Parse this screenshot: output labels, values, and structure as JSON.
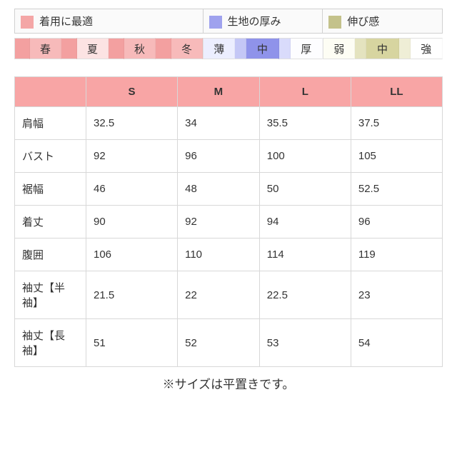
{
  "legend": {
    "items": [
      {
        "color": "#f4a6a6",
        "label": "着用に最適",
        "width_pct": 44
      },
      {
        "color": "#9fa2ee",
        "label": "生地の厚み",
        "width_pct": 28
      },
      {
        "color": "#c4c28b",
        "label": "伸び感",
        "width_pct": 28
      }
    ]
  },
  "scales": {
    "groups": [
      {
        "width_pct": 44,
        "cells": [
          {
            "label": "",
            "bg": "#f3a0a0",
            "w": 1
          },
          {
            "label": "春",
            "bg": "#f7baba",
            "w": 2
          },
          {
            "label": "",
            "bg": "#f3a0a0",
            "w": 1
          },
          {
            "label": "夏",
            "bg": "#fce3e3",
            "w": 2
          },
          {
            "label": "",
            "bg": "#f3a0a0",
            "w": 1
          },
          {
            "label": "秋",
            "bg": "#f7baba",
            "w": 2
          },
          {
            "label": "",
            "bg": "#f3a0a0",
            "w": 1
          },
          {
            "label": "冬",
            "bg": "#f7baba",
            "w": 2
          }
        ]
      },
      {
        "width_pct": 28,
        "cells": [
          {
            "label": "薄",
            "bg": "#eceeff",
            "w": 1
          },
          {
            "label": "",
            "bg": "#c4c7f6",
            "w": 0.35
          },
          {
            "label": "中",
            "bg": "#8f93ea",
            "w": 1
          },
          {
            "label": "",
            "bg": "#d9dbfb",
            "w": 0.35
          },
          {
            "label": "厚",
            "bg": "#fdfdff",
            "w": 1
          }
        ]
      },
      {
        "width_pct": 28,
        "cells": [
          {
            "label": "弱",
            "bg": "#fdfdf4",
            "w": 1
          },
          {
            "label": "",
            "bg": "#e4e3bf",
            "w": 0.35
          },
          {
            "label": "中",
            "bg": "#d7d5a0",
            "w": 1
          },
          {
            "label": "",
            "bg": "#efeed6",
            "w": 0.35
          },
          {
            "label": "強",
            "bg": "#ffffff",
            "w": 1
          }
        ]
      }
    ]
  },
  "size_table": {
    "header_bg": "#f8a5a5",
    "columns": [
      "",
      "S",
      "M",
      "L",
      "LL"
    ],
    "rows": [
      {
        "label": "肩幅",
        "values": [
          "32.5",
          "34",
          "35.5",
          "37.5"
        ]
      },
      {
        "label": "バスト",
        "values": [
          "92",
          "96",
          "100",
          "105"
        ]
      },
      {
        "label": "裾幅",
        "values": [
          "46",
          "48",
          "50",
          "52.5"
        ]
      },
      {
        "label": "着丈",
        "values": [
          "90",
          "92",
          "94",
          "96"
        ]
      },
      {
        "label": "腹囲",
        "values": [
          "106",
          "110",
          "114",
          "119"
        ]
      },
      {
        "label": "袖丈【半袖】",
        "values": [
          "21.5",
          "22",
          "22.5",
          "23"
        ]
      },
      {
        "label": "袖丈【長袖】",
        "values": [
          "51",
          "52",
          "53",
          "54"
        ]
      }
    ]
  },
  "note": "※サイズは平置きです。"
}
